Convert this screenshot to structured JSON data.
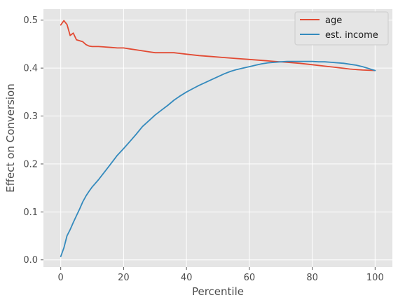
{
  "chart_data": {
    "type": "line",
    "title": "",
    "xlabel": "Percentile",
    "ylabel": "Effect on Conversion",
    "xlim": [
      -5.5,
      105.5
    ],
    "ylim": [
      -0.015,
      0.523
    ],
    "xticks": [
      0,
      20,
      40,
      60,
      80,
      100
    ],
    "yticks": [
      0.0,
      0.1,
      0.2,
      0.3,
      0.4,
      0.5
    ],
    "xtick_labels": [
      "0",
      "20",
      "40",
      "60",
      "80",
      "100"
    ],
    "ytick_labels": [
      "0.0",
      "0.1",
      "0.2",
      "0.3",
      "0.4",
      "0.5"
    ],
    "grid": true,
    "legend": "top-right",
    "background": "#e5e5e5",
    "grid_color": "#ffffff",
    "series": [
      {
        "name": "age",
        "color": "#e24a33",
        "x": [
          0,
          1,
          2,
          3,
          4,
          5,
          6,
          7,
          8,
          9,
          10,
          12,
          14,
          16,
          18,
          20,
          22,
          24,
          26,
          28,
          30,
          33,
          36,
          40,
          44,
          48,
          52,
          56,
          60,
          64,
          68,
          72,
          76,
          80,
          84,
          88,
          92,
          96,
          100
        ],
        "y": [
          0.49,
          0.499,
          0.491,
          0.468,
          0.473,
          0.459,
          0.457,
          0.455,
          0.449,
          0.446,
          0.445,
          0.445,
          0.444,
          0.443,
          0.442,
          0.442,
          0.44,
          0.438,
          0.436,
          0.434,
          0.432,
          0.432,
          0.432,
          0.429,
          0.426,
          0.424,
          0.422,
          0.42,
          0.418,
          0.416,
          0.414,
          0.412,
          0.41,
          0.407,
          0.404,
          0.401,
          0.398,
          0.396,
          0.395
        ]
      },
      {
        "name": "est. income",
        "color": "#348abd",
        "x": [
          0,
          1,
          2,
          3,
          4,
          5,
          6,
          7,
          8,
          9,
          10,
          12,
          14,
          16,
          18,
          20,
          22,
          24,
          26,
          28,
          30,
          32,
          34,
          36,
          38,
          40,
          42,
          44,
          46,
          48,
          50,
          52,
          54,
          56,
          58,
          60,
          62,
          64,
          66,
          68,
          70,
          72,
          74,
          76,
          78,
          80,
          82,
          84,
          86,
          88,
          90,
          92,
          94,
          96,
          98,
          100
        ],
        "y": [
          0.007,
          0.025,
          0.05,
          0.063,
          0.078,
          0.092,
          0.106,
          0.121,
          0.133,
          0.143,
          0.152,
          0.167,
          0.184,
          0.201,
          0.218,
          0.232,
          0.247,
          0.262,
          0.278,
          0.29,
          0.302,
          0.312,
          0.322,
          0.333,
          0.342,
          0.35,
          0.357,
          0.364,
          0.37,
          0.376,
          0.382,
          0.388,
          0.393,
          0.397,
          0.4,
          0.403,
          0.406,
          0.409,
          0.411,
          0.412,
          0.413,
          0.414,
          0.414,
          0.414,
          0.414,
          0.414,
          0.413,
          0.413,
          0.412,
          0.411,
          0.41,
          0.408,
          0.406,
          0.403,
          0.399,
          0.395
        ]
      }
    ]
  }
}
